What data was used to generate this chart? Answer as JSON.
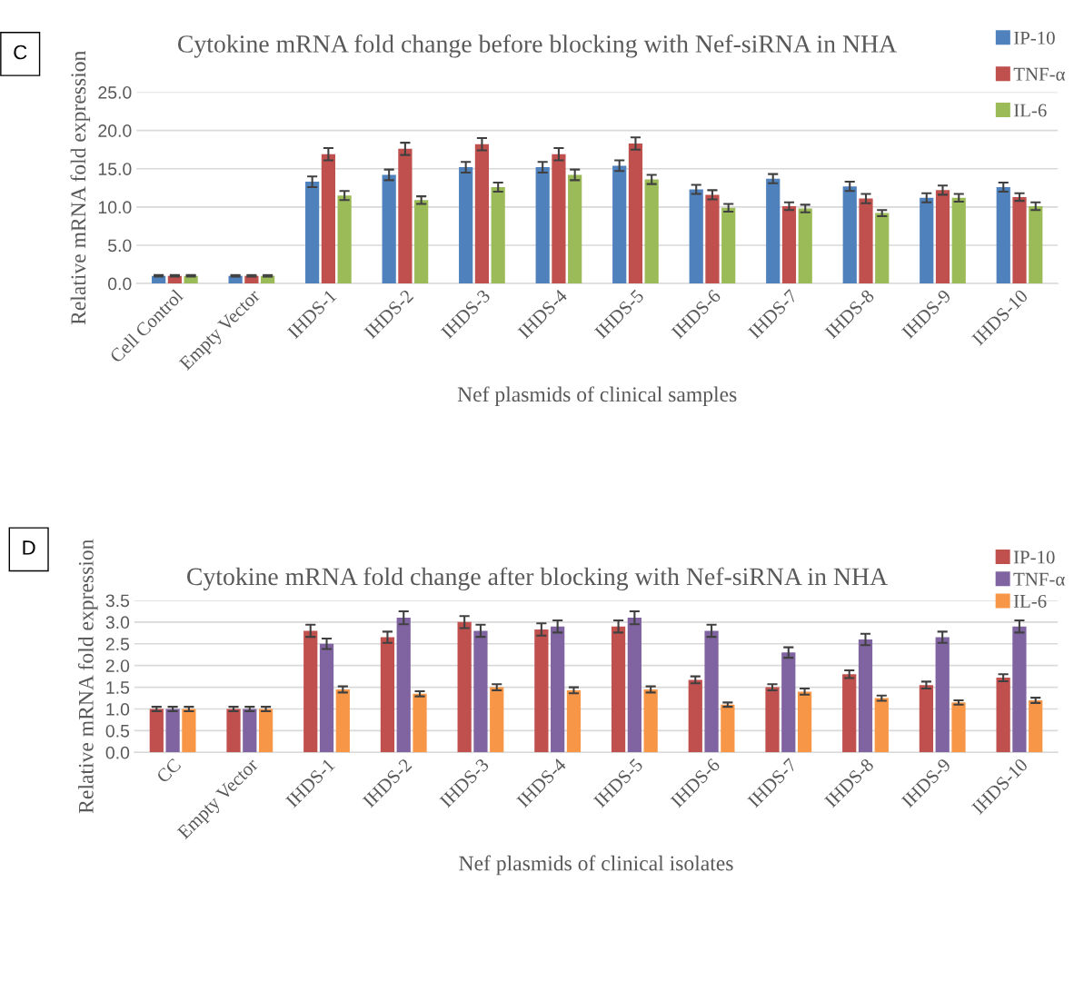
{
  "chart_data": [
    {
      "type": "bar",
      "title": "Cytokine mRNA fold change before blocking with Nef-siRNA in NHA",
      "xlabel": "Nef plasmids of clinical samples",
      "ylabel": "Relative mRNA fold expression",
      "annotations": [
        "C"
      ],
      "categories": [
        "Cell Control",
        "Empty Vector",
        "IHDS-1",
        "IHDS-2",
        "IHDS-3",
        "IHDS-4",
        "IHDS-5",
        "IHDS-6",
        "IHDS-7",
        "IHDS-8",
        "IHDS-9",
        "IHDS-10"
      ],
      "series": [
        {
          "name": "IP-10",
          "color": "#4f81bd",
          "values": [
            1,
            1,
            13.3,
            14.2,
            15.2,
            15.2,
            15.4,
            12.3,
            13.7,
            12.7,
            11.2,
            12.6
          ],
          "errors": [
            0.1,
            0.1,
            0.7,
            0.7,
            0.7,
            0.7,
            0.7,
            0.6,
            0.6,
            0.6,
            0.6,
            0.6
          ]
        },
        {
          "name": "TNF-α",
          "color": "#c0504d",
          "values": [
            1,
            1,
            16.9,
            17.6,
            18.2,
            16.9,
            18.3,
            11.6,
            10.1,
            11.1,
            12.2,
            11.3
          ],
          "errors": [
            0.1,
            0.1,
            0.8,
            0.8,
            0.8,
            0.8,
            0.8,
            0.6,
            0.5,
            0.6,
            0.6,
            0.5
          ]
        },
        {
          "name": "IL-6",
          "color": "#9bbb59",
          "values": [
            1,
            1,
            11.5,
            10.9,
            12.6,
            14.2,
            13.6,
            9.9,
            9.8,
            9.2,
            11.2,
            10.1
          ],
          "errors": [
            0.1,
            0.1,
            0.6,
            0.5,
            0.6,
            0.7,
            0.6,
            0.5,
            0.5,
            0.4,
            0.5,
            0.5
          ]
        }
      ],
      "ylim": [
        0,
        25
      ],
      "yticks": [
        {
          "value": 0,
          "label": "0.0"
        },
        {
          "value": 5,
          "label": "5.0"
        },
        {
          "value": 10,
          "label": "10.0"
        },
        {
          "value": 15,
          "label": "15.0"
        },
        {
          "value": 20,
          "label": "20.0"
        },
        {
          "value": 25,
          "label": "25.0"
        }
      ],
      "grid": "y",
      "legend": "top right"
    },
    {
      "type": "bar",
      "title": "Cytokine mRNA fold change after blocking with Nef-siRNA in NHA",
      "xlabel": "Nef plasmids of clinical isolates",
      "ylabel": "Relative mRNA fold expression",
      "annotations": [
        "D"
      ],
      "categories": [
        "CC",
        "Empty Vector",
        "IHDS-1",
        "IHDS-2",
        "IHDS-3",
        "IHDS-4",
        "IHDS-5",
        "IHDS-6",
        "IHDS-7",
        "IHDS-8",
        "IHDS-9",
        "IHDS-10"
      ],
      "series": [
        {
          "name": "IP-10",
          "color": "#c0504d",
          "values": [
            1,
            1,
            2.8,
            2.65,
            3.0,
            2.83,
            2.9,
            1.67,
            1.5,
            1.8,
            1.55,
            1.72
          ],
          "errors": [
            0.05,
            0.05,
            0.14,
            0.13,
            0.14,
            0.14,
            0.14,
            0.08,
            0.07,
            0.09,
            0.08,
            0.08
          ]
        },
        {
          "name": "TNF-α",
          "color": "#8064a2",
          "values": [
            1,
            1,
            2.5,
            3.1,
            2.8,
            2.9,
            3.1,
            2.8,
            2.3,
            2.6,
            2.65,
            2.9
          ],
          "errors": [
            0.05,
            0.05,
            0.12,
            0.15,
            0.14,
            0.14,
            0.15,
            0.14,
            0.12,
            0.13,
            0.13,
            0.14
          ]
        },
        {
          "name": "IL-6",
          "color": "#f79646",
          "values": [
            1,
            1,
            1.45,
            1.35,
            1.5,
            1.43,
            1.45,
            1.1,
            1.4,
            1.25,
            1.15,
            1.2
          ],
          "errors": [
            0.05,
            0.05,
            0.07,
            0.06,
            0.07,
            0.07,
            0.07,
            0.05,
            0.07,
            0.06,
            0.05,
            0.06
          ]
        }
      ],
      "ylim": [
        0,
        3.5
      ],
      "yticks": [
        {
          "value": 0,
          "label": "0.0"
        },
        {
          "value": 0.5,
          "label": "0.5"
        },
        {
          "value": 1,
          "label": "1.0"
        },
        {
          "value": 1.5,
          "label": "1.5"
        },
        {
          "value": 2,
          "label": "2.0"
        },
        {
          "value": 2.5,
          "label": "2.5"
        },
        {
          "value": 3,
          "label": "3.0"
        },
        {
          "value": 3.5,
          "label": "3.5"
        }
      ],
      "grid": "y",
      "legend": "top right"
    }
  ]
}
